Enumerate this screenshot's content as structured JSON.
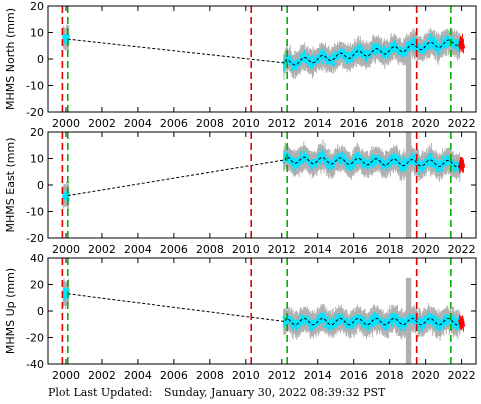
{
  "chart_data": [
    {
      "type": "scatter",
      "ylabel": "MHMS North (mm)",
      "ylim": [
        -20,
        20
      ],
      "yticks": [
        -20,
        -10,
        0,
        10,
        20
      ],
      "xlim": [
        1999.0,
        2022.8
      ],
      "xticks": [
        2000,
        2002,
        2004,
        2006,
        2008,
        2010,
        2012,
        2014,
        2016,
        2018,
        2020,
        2022
      ],
      "grid": false,
      "trend": {
        "start_x": 2000.1,
        "start_y": 7.5,
        "end_x": 2012.2,
        "end_y": -1.5,
        "late_x": 2021.9,
        "late_y": 6.5
      },
      "red_markers": [
        1999.8,
        2010.3,
        2019.5
      ],
      "green_markers": [
        2000.1,
        2012.3,
        2021.4
      ],
      "series": [
        {
          "style": "gray error bars",
          "segments": [
            [
              1999.85,
              2000.15
            ],
            [
              2012.1,
              2021.9
            ]
          ]
        },
        {
          "style": "cyan daily positions",
          "segments": [
            [
              1999.85,
              2000.15
            ],
            [
              2012.1,
              2021.9
            ]
          ]
        },
        {
          "style": "red final positions",
          "segments": [
            [
              2021.9,
              2022.1
            ]
          ]
        },
        {
          "style": "black dashed model"
        }
      ],
      "outlier_band": {
        "x": [
          2018.9,
          2019.2
        ],
        "y": [
          -20,
          8
        ]
      }
    },
    {
      "type": "scatter",
      "ylabel": "MHMS East (mm)",
      "ylim": [
        -20,
        20
      ],
      "yticks": [
        -20,
        -10,
        0,
        10,
        20
      ],
      "xlim": [
        1999.0,
        2022.8
      ],
      "xticks": [
        2000,
        2002,
        2004,
        2006,
        2008,
        2010,
        2012,
        2014,
        2016,
        2018,
        2020,
        2022
      ],
      "grid": false,
      "trend": {
        "start_x": 2000.1,
        "start_y": -4.0,
        "end_x": 2012.2,
        "end_y": 9.5,
        "late_x": 2021.9,
        "late_y": 8.0
      },
      "red_markers": [
        1999.8,
        2010.3,
        2019.5
      ],
      "green_markers": [
        2000.1,
        2012.3,
        2021.4
      ],
      "series": [
        {
          "style": "gray error bars",
          "segments": [
            [
              1999.85,
              2000.15
            ],
            [
              2012.1,
              2021.9
            ]
          ]
        },
        {
          "style": "cyan daily positions",
          "segments": [
            [
              1999.85,
              2000.15
            ],
            [
              2012.1,
              2021.9
            ]
          ]
        },
        {
          "style": "red final positions",
          "segments": [
            [
              2021.9,
              2022.1
            ]
          ]
        },
        {
          "style": "black dashed model"
        }
      ],
      "outlier_band": {
        "x": [
          2018.9,
          2019.2
        ],
        "y": [
          -20,
          20
        ]
      }
    },
    {
      "type": "scatter",
      "ylabel": "MHMS Up (mm)",
      "ylim": [
        -40,
        40
      ],
      "yticks": [
        -40,
        -20,
        0,
        20,
        40
      ],
      "xlim": [
        1999.0,
        2022.8
      ],
      "xticks": [
        2000,
        2002,
        2004,
        2006,
        2008,
        2010,
        2012,
        2014,
        2016,
        2018,
        2020,
        2022
      ],
      "grid": false,
      "trend": {
        "start_x": 2000.1,
        "start_y": 13.0,
        "end_x": 2012.2,
        "end_y": -8.0,
        "late_x": 2021.9,
        "late_y": -8.0
      },
      "red_markers": [
        1999.8,
        2010.3,
        2019.5
      ],
      "green_markers": [
        2000.1,
        2012.3,
        2021.4
      ],
      "series": [
        {
          "style": "gray error bars",
          "segments": [
            [
              1999.85,
              2000.15
            ],
            [
              2012.1,
              2021.9
            ]
          ]
        },
        {
          "style": "cyan daily positions",
          "segments": [
            [
              1999.85,
              2000.15
            ],
            [
              2012.1,
              2021.9
            ]
          ]
        },
        {
          "style": "red final positions",
          "segments": [
            [
              2021.9,
              2022.1
            ]
          ]
        },
        {
          "style": "black dashed model"
        }
      ],
      "outlier_band": {
        "x": [
          2018.9,
          2019.2
        ],
        "y": [
          -40,
          25
        ]
      }
    }
  ],
  "colors": {
    "cyan": "#00e5ff",
    "gray": "#b0b0b0",
    "red_marker": "#e00000",
    "green_marker": "#00b000",
    "final_red": "#ff0000"
  },
  "footer": {
    "label": "Plot Last Updated:",
    "value": "Sunday, January 30, 2022 08:39:32 PST"
  }
}
